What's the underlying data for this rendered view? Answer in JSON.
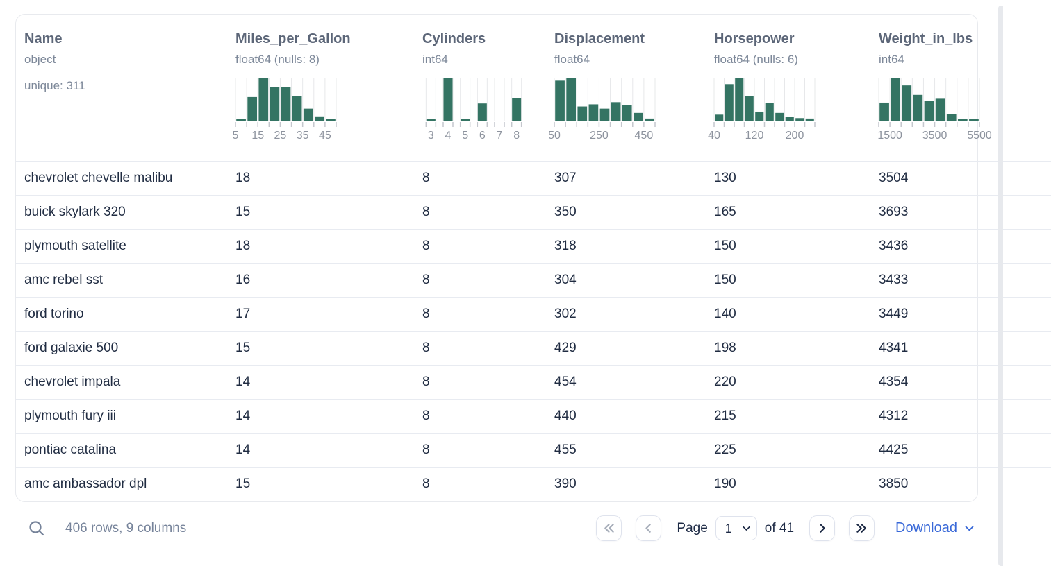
{
  "colors": {
    "hist_bar": "#347463",
    "hist_grid": "#e7e8ea",
    "hist_tick": "#c4c7cd",
    "hist_tick_label": "#8d939e",
    "header_text": "#5c6678",
    "header_subtext": "#7d8899",
    "row_text": "#202c42",
    "row_border": "#e8ebf1",
    "card_border": "#e8eaee",
    "btn_border": "#dfe3ed",
    "muted_footer": "#76839a",
    "dark_navy": "#1d2a45",
    "disabled_icon": "#a6adb9",
    "accent_blue": "#3868d8"
  },
  "table": {
    "columns": [
      {
        "name": "Name",
        "dtype": "object",
        "extra": "unique: 311"
      },
      {
        "name": "Miles_per_Gallon",
        "dtype": "float64 (nulls: 8)",
        "histogram": {
          "kind": "continuous",
          "values": [
            0.03,
            0.55,
            1.0,
            0.79,
            0.78,
            0.57,
            0.28,
            0.1,
            0.03
          ],
          "tick_labels": [
            "5",
            "15",
            "25",
            "35",
            "45"
          ],
          "label_edges": [
            0,
            2,
            4,
            6,
            8
          ]
        }
      },
      {
        "name": "Cylinders",
        "dtype": "int64",
        "histogram": {
          "kind": "categorical",
          "values": [
            0.04,
            1.0,
            0.03,
            0.4,
            0,
            0.52
          ],
          "tick_labels": [
            "3",
            "4",
            "5",
            "6",
            "7",
            "8"
          ]
        }
      },
      {
        "name": "Displacement",
        "dtype": "float64",
        "histogram": {
          "kind": "continuous",
          "values": [
            0.93,
            1.0,
            0.33,
            0.38,
            0.28,
            0.43,
            0.36,
            0.18,
            0.05
          ],
          "tick_labels": [
            "50",
            "250",
            "450"
          ],
          "label_edges": [
            0,
            4,
            8
          ]
        }
      },
      {
        "name": "Horsepower",
        "dtype": "float64 (nulls: 6)",
        "histogram": {
          "kind": "continuous",
          "values": [
            0.14,
            0.85,
            1.0,
            0.57,
            0.21,
            0.41,
            0.18,
            0.09,
            0.06,
            0.05
          ],
          "tick_labels": [
            "40",
            "120",
            "200"
          ],
          "label_edges": [
            0,
            4,
            8
          ]
        }
      },
      {
        "name": "Weight_in_lbs",
        "dtype": "int64",
        "histogram": {
          "kind": "continuous",
          "values": [
            0.42,
            1.0,
            0.82,
            0.6,
            0.46,
            0.51,
            0.15,
            0.02,
            0.01
          ],
          "tick_labels": [
            "1500",
            "3500",
            "5500"
          ],
          "label_edges": [
            1,
            5,
            9
          ]
        }
      }
    ],
    "rows": [
      [
        "chevrolet chevelle malibu",
        "18",
        "8",
        "307",
        "130",
        "3504"
      ],
      [
        "buick skylark 320",
        "15",
        "8",
        "350",
        "165",
        "3693"
      ],
      [
        "plymouth satellite",
        "18",
        "8",
        "318",
        "150",
        "3436"
      ],
      [
        "amc rebel sst",
        "16",
        "8",
        "304",
        "150",
        "3433"
      ],
      [
        "ford torino",
        "17",
        "8",
        "302",
        "140",
        "3449"
      ],
      [
        "ford galaxie 500",
        "15",
        "8",
        "429",
        "198",
        "4341"
      ],
      [
        "chevrolet impala",
        "14",
        "8",
        "454",
        "220",
        "4354"
      ],
      [
        "plymouth fury iii",
        "14",
        "8",
        "440",
        "215",
        "4312"
      ],
      [
        "pontiac catalina",
        "14",
        "8",
        "455",
        "225",
        "4425"
      ],
      [
        "amc ambassador dpl",
        "15",
        "8",
        "390",
        "190",
        "3850"
      ]
    ]
  },
  "footer": {
    "summary": "406 rows, 9 columns",
    "pagination": {
      "page_label": "Page",
      "current_page": "1",
      "total_label": "of 41"
    },
    "download_label": "Download"
  }
}
